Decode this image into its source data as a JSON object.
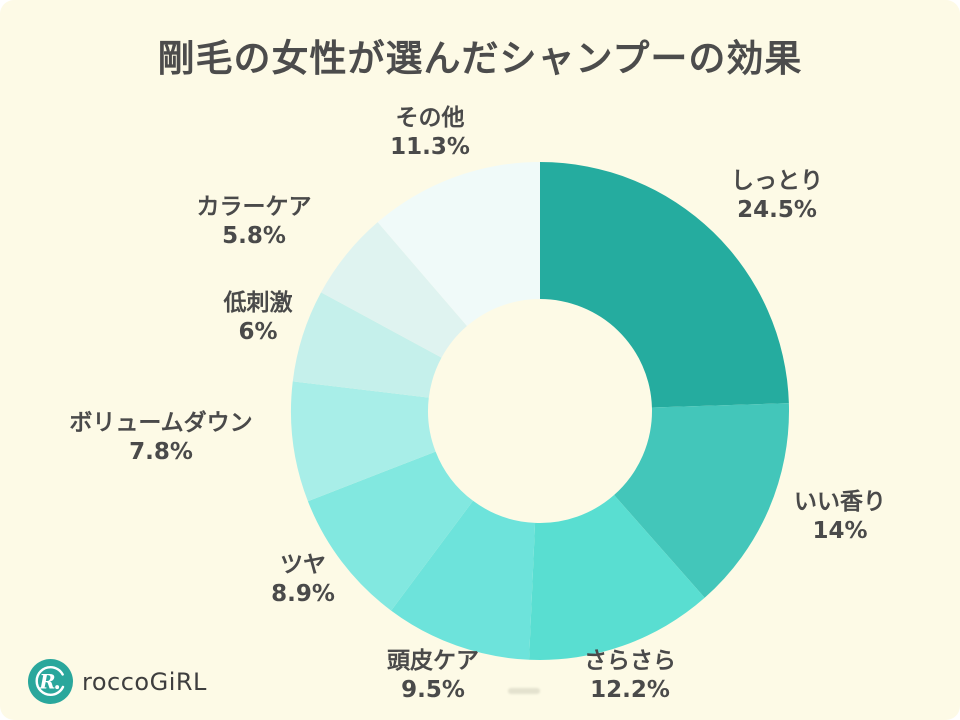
{
  "chart_data": {
    "type": "pie",
    "donut": true,
    "title": "剛毛の女性が選んだシャンプーの効果",
    "direction": "clockwise",
    "start_angle_deg": 0,
    "legend_position": "around-slices",
    "slices": [
      {
        "label": "しっとり",
        "value": 24.5,
        "pct_label": "24.5%",
        "color": "#25ac9f"
      },
      {
        "label": "いい香り",
        "value": 14,
        "pct_label": "14%",
        "color": "#43c6ba"
      },
      {
        "label": "さらさら",
        "value": 12.2,
        "pct_label": "12.2%",
        "color": "#59ded1"
      },
      {
        "label": "頭皮ケア",
        "value": 9.5,
        "pct_label": "9.5%",
        "color": "#6de3db"
      },
      {
        "label": "ツヤ",
        "value": 8.9,
        "pct_label": "8.9%",
        "color": "#82e8e0"
      },
      {
        "label": "ボリュームダウン",
        "value": 7.8,
        "pct_label": "7.8%",
        "color": "#a8eee8"
      },
      {
        "label": "低刺激",
        "value": 6,
        "pct_label": "6%",
        "color": "#c5f0eb"
      },
      {
        "label": "カラーケア",
        "value": 5.8,
        "pct_label": "5.8%",
        "color": "#dff3f0"
      },
      {
        "label": "その他",
        "value": 11.3,
        "pct_label": "11.3%",
        "color": "#f0faf9"
      }
    ]
  },
  "footer": {
    "logo_text": "roccoGiRL",
    "logo_monogram": "R."
  },
  "colors": {
    "background": "#fdfae6",
    "title_text": "#4c4c4c",
    "label_text": "#4a4a4a",
    "brand_teal": "#2aa79c"
  }
}
